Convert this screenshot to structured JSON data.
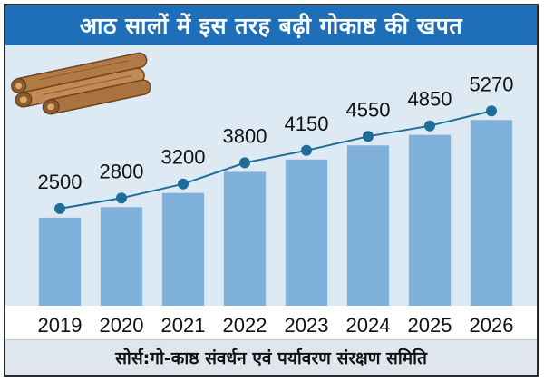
{
  "title": "आठ सालों में इस तरह बढ़ी गोकाष्ठ की खपत",
  "source": "सोर्स:गो-काष्ठ संवर्धन एवं पर्यावरण संरक्षण समिति",
  "illustration": "cinnamon-sticks-image",
  "colors": {
    "title_bg": "#1f6fb8",
    "plot_bg": "#dde9f3",
    "bar": "#7fb0d9",
    "line": "#1e6d99",
    "marker": "#1e6d99"
  },
  "chart_data": {
    "type": "bar",
    "overlay": "line",
    "title": "आठ सालों में इस तरह बढ़ी गोकाष्ठ की खपत",
    "categories": [
      "2019",
      "2020",
      "2021",
      "2022",
      "2023",
      "2024",
      "2025",
      "2026"
    ],
    "values": [
      2500,
      2800,
      3200,
      3800,
      4150,
      4550,
      4850,
      5270
    ],
    "data_labels": [
      "2500",
      "2800",
      "3200",
      "3800",
      "4150",
      "4550",
      "4850",
      "5270"
    ],
    "xlabel": "",
    "ylabel": "",
    "ylim": [
      0,
      6000
    ],
    "grid": false,
    "legend": "none"
  }
}
